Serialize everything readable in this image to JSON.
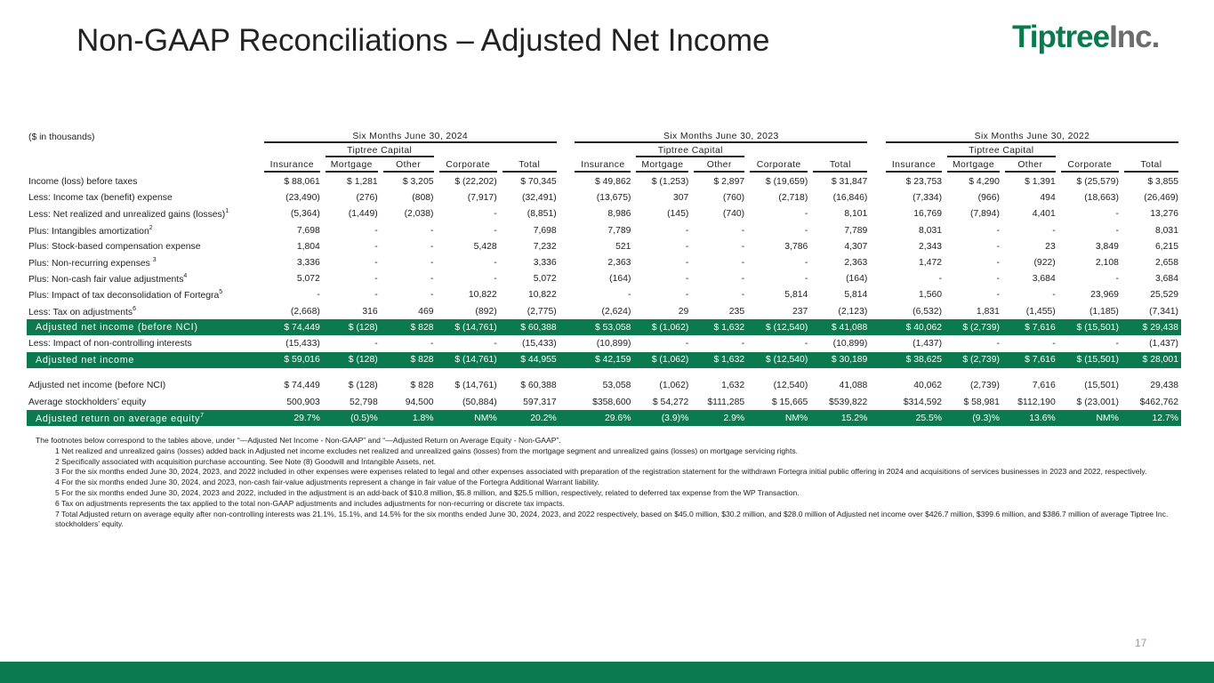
{
  "title": "Non-GAAP Reconciliations – Adjusted Net Income",
  "logo": {
    "part1": "Tiptree",
    "part2": "Inc."
  },
  "colors": {
    "brand_green": "#0b7a4f"
  },
  "units_label": "($ in thousands)",
  "periods": [
    "Six Months June 30, 2024",
    "Six Months June 30, 2023",
    "Six Months June 30, 2022"
  ],
  "group_label": "Tiptree Capital",
  "columns": [
    "Insurance",
    "Mortgage",
    "Other",
    "Corporate",
    "Total"
  ],
  "rows": [
    {
      "label": "Income (loss) before taxes",
      "sup": "",
      "style": "",
      "values": [
        "$ 88,061",
        "$ 1,281",
        "$ 3,205",
        "$ (22,202)",
        "$ 70,345",
        "$ 49,862",
        "$ (1,253)",
        "$ 2,897",
        "$ (19,659)",
        "$ 31,847",
        "$ 23,753",
        "$ 4,290",
        "$ 1,391",
        "$ (25,579)",
        "$ 3,855"
      ]
    },
    {
      "label": "Less: Income tax (benefit) expense",
      "sup": "",
      "style": "",
      "values": [
        "(23,490)",
        "(276)",
        "(808)",
        "(7,917)",
        "(32,491)",
        "(13,675)",
        "307",
        "(760)",
        "(2,718)",
        "(16,846)",
        "(7,334)",
        "(966)",
        "494",
        "(18,663)",
        "(26,469)"
      ]
    },
    {
      "label": "Less: Net realized and unrealized gains (losses)",
      "sup": "1",
      "style": "",
      "values": [
        "(5,364)",
        "(1,449)",
        "(2,038)",
        "-",
        "(8,851)",
        "8,986",
        "(145)",
        "(740)",
        "-",
        "8,101",
        "16,769",
        "(7,894)",
        "4,401",
        "-",
        "13,276"
      ]
    },
    {
      "label": "Plus: Intangibles amortization",
      "sup": "2",
      "style": "",
      "values": [
        "7,698",
        "-",
        "-",
        "-",
        "7,698",
        "7,789",
        "-",
        "-",
        "-",
        "7,789",
        "8,031",
        "-",
        "-",
        "-",
        "8,031"
      ]
    },
    {
      "label": "Plus: Stock-based compensation expense",
      "sup": "",
      "style": "",
      "values": [
        "1,804",
        "-",
        "-",
        "5,428",
        "7,232",
        "521",
        "-",
        "-",
        "3,786",
        "4,307",
        "2,343",
        "-",
        "23",
        "3,849",
        "6,215"
      ]
    },
    {
      "label": "Plus: Non-recurring expenses ",
      "sup": "3",
      "style": "",
      "values": [
        "3,336",
        "-",
        "-",
        "-",
        "3,336",
        "2,363",
        "-",
        "-",
        "-",
        "2,363",
        "1,472",
        "-",
        "(922)",
        "2,108",
        "2,658"
      ]
    },
    {
      "label": "Plus: Non-cash fair value adjustments",
      "sup": "4",
      "style": "",
      "values": [
        "5,072",
        "-",
        "-",
        "-",
        "5,072",
        "(164)",
        "-",
        "-",
        "-",
        "(164)",
        "-",
        "-",
        "3,684",
        "-",
        "3,684"
      ]
    },
    {
      "label": "Plus: Impact of tax deconsolidation of Fortegra",
      "sup": "5",
      "style": "",
      "values": [
        "-",
        "-",
        "-",
        "10,822",
        "10,822",
        "-",
        "-",
        "-",
        "5,814",
        "5,814",
        "1,560",
        "-",
        "-",
        "23,969",
        "25,529"
      ]
    },
    {
      "label": "Less: Tax on adjustments",
      "sup": "6",
      "style": "",
      "values": [
        "(2,668)",
        "316",
        "469",
        "(892)",
        "(2,775)",
        "(2,624)",
        "29",
        "235",
        "237",
        "(2,123)",
        "(6,532)",
        "1,831",
        "(1,455)",
        "(1,185)",
        "(7,341)"
      ]
    },
    {
      "label": "Adjusted net income (before NCI)",
      "sup": "",
      "style": "green",
      "values": [
        "$ 74,449",
        "$ (128)",
        "$ 828",
        "$ (14,761)",
        "$ 60,388",
        "$ 53,058",
        "$ (1,062)",
        "$ 1,632",
        "$ (12,540)",
        "$ 41,088",
        "$ 40,062",
        "$ (2,739)",
        "$ 7,616",
        "$ (15,501)",
        "$ 29,438"
      ]
    },
    {
      "label": "Less: Impact of non-controlling interests",
      "sup": "",
      "style": "",
      "values": [
        "(15,433)",
        "-",
        "-",
        "-",
        "(15,433)",
        "(10,899)",
        "-",
        "-",
        "-",
        "(10,899)",
        "(1,437)",
        "-",
        "-",
        "-",
        "(1,437)"
      ]
    },
    {
      "label": "Adjusted net income",
      "sup": "",
      "style": "green",
      "values": [
        "$ 59,016",
        "$ (128)",
        "$ 828",
        "$ (14,761)",
        "$ 44,955",
        "$ 42,159",
        "$ (1,062)",
        "$ 1,632",
        "$ (12,540)",
        "$ 30,189",
        "$ 38,625",
        "$ (2,739)",
        "$ 7,616",
        "$ (15,501)",
        "$ 28,001"
      ]
    },
    {
      "label": "",
      "sup": "",
      "style": "spacer",
      "values": []
    },
    {
      "label": "Adjusted net income (before NCI)",
      "sup": "",
      "style": "",
      "values": [
        "$ 74,449",
        "$ (128)",
        "$ 828",
        "$ (14,761)",
        "$ 60,388",
        "53,058",
        "(1,062)",
        "1,632",
        "(12,540)",
        "41,088",
        "40,062",
        "(2,739)",
        "7,616",
        "(15,501)",
        "29,438"
      ]
    },
    {
      "label": "Average stockholders’ equity",
      "sup": "",
      "style": "",
      "values": [
        "500,903",
        "52,798",
        "94,500",
        "(50,884)",
        "597,317",
        "$358,600",
        "$ 54,272",
        "$111,285",
        "$ 15,665",
        "$539,822",
        "$314,592",
        "$ 58,981",
        "$112,190",
        "$ (23,001)",
        "$462,762"
      ]
    },
    {
      "label": "Adjusted return on average equity",
      "sup": "7",
      "style": "green",
      "values": [
        "29.7%",
        "(0.5)%",
        "1.8%",
        "NM%",
        "20.2%",
        "29.6%",
        "(3.9)%",
        "2.9%",
        "NM%",
        "15.2%",
        "25.5%",
        "(9.3)%",
        "13.6%",
        "NM%",
        "12.7%"
      ]
    }
  ],
  "footnotes": {
    "intro": "The footnotes below correspond to the tables above, under “—Adjusted Net Income - Non-GAAP” and “—Adjusted Return on Average Equity - Non-GAAP”.",
    "items": [
      "1 Net realized and unrealized gains (losses) added back in Adjusted net income excludes net realized and unrealized gains (losses) from the mortgage segment and unrealized gains (losses) on mortgage servicing rights.",
      "2 Specifically associated with acquisition purchase accounting. See Note (8) Goodwill and Intangible Assets, net.",
      "3 For the six months ended June 30, 2024, 2023, and 2022 included in other expenses were expenses related to legal and other expenses associated with preparation of the registration statement for the withdrawn Fortegra initial public offering in 2024 and acquisitions of services businesses in 2023 and 2022, respectively.",
      "4 For the six months ended June 30, 2024, and 2023, non-cash fair-value adjustments represent a change in fair value of the Fortegra Additional Warrant liability.",
      "5 For the six months ended June 30, 2024, 2023 and 2022, included in the adjustment is an add-back of $10.8 million, $5.8 million, and $25.5 million, respectively, related to deferred tax expense from the WP Transaction.",
      "6 Tax on adjustments represents the tax applied to the total non-GAAP adjustments and includes adjustments for non-recurring or discrete tax impacts.",
      "7 Total Adjusted return on average equity after non-controlling interests was 21.1%, 15.1%, and 14.5% for the six months ended June 30, 2024, 2023, and 2022 respectively, based on $45.0 million, $30.2 million, and $28.0 million of Adjusted net income over $426.7 million, $399.6 million, and $386.7 million of average Tiptree Inc. stockholders’ equity."
    ]
  },
  "page_number": "17"
}
